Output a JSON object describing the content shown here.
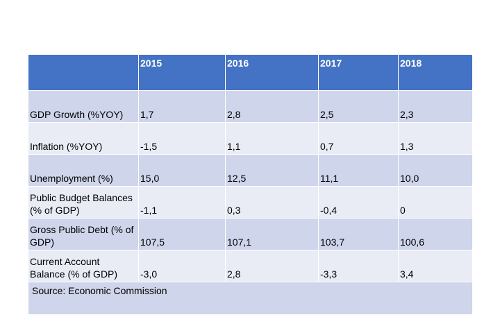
{
  "table": {
    "header": [
      "",
      "2015",
      "2016",
      "2017",
      "2018"
    ],
    "rows": [
      {
        "label": "GDP Growth (%YOY)",
        "values": [
          "1,7",
          "2,8",
          "2,5",
          "2,3"
        ]
      },
      {
        "label": "Inflation (%YOY)",
        "values": [
          "-1,5",
          "1,1",
          "0,7",
          "1,3"
        ]
      },
      {
        "label": "Unemployment (%)",
        "values": [
          "15,0",
          "12,5",
          "11,1",
          "10,0"
        ]
      },
      {
        "label": "Public Budget Balances (% of GDP)",
        "values": [
          "-1,1",
          "0,3",
          "-0,4",
          "0"
        ]
      },
      {
        "label": "Gross Public Debt (% of GDP)",
        "values": [
          "107,5",
          "107,1",
          "103,7",
          "100,6"
        ]
      },
      {
        "label": "Current Account Balance (% of GDP)",
        "values": [
          "-3,0",
          "2,8",
          "-3,3",
          "3,4"
        ]
      }
    ],
    "source": "Source: Economic Commission"
  },
  "colors": {
    "header_bg": "#4472c4",
    "row_dark": "#cfd5ea",
    "row_light": "#e9ebf5"
  }
}
